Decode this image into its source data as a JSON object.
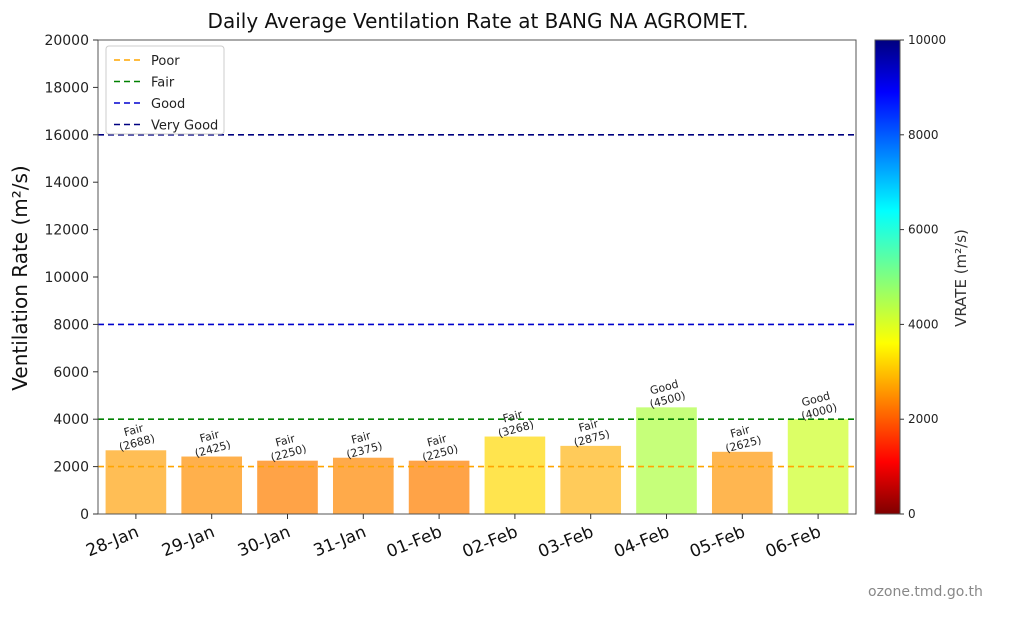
{
  "chart_data": {
    "type": "bar",
    "title": "Daily Average Ventilation Rate at BANG NA AGROMET.",
    "ylabel": "Ventilation Rate (m²/s)",
    "xlabel": "",
    "ylim": [
      0,
      20000
    ],
    "yticks": [
      0,
      2000,
      4000,
      6000,
      8000,
      10000,
      12000,
      14000,
      16000,
      18000,
      20000
    ],
    "grid": false,
    "legend_position": "top-left",
    "categories": [
      "28-Jan",
      "29-Jan",
      "30-Jan",
      "31-Jan",
      "01-Feb",
      "02-Feb",
      "03-Feb",
      "04-Feb",
      "05-Feb",
      "06-Feb"
    ],
    "values": [
      2688,
      2425,
      2250,
      2375,
      2250,
      3268,
      2875,
      4500,
      2625,
      4000
    ],
    "bar_labels": [
      "Fair",
      "Fair",
      "Fair",
      "Fair",
      "Fair",
      "Fair",
      "Fair",
      "Good",
      "Fair",
      "Good"
    ],
    "bar_value_labels": [
      "(2688)",
      "(2425)",
      "(2250)",
      "(2375)",
      "(2250)",
      "(3268)",
      "(2875)",
      "(4500)",
      "(2625)",
      "(4000)"
    ],
    "bar_colors": [
      "#ffbe55",
      "#ffb04c",
      "#ffa347",
      "#ffaa4a",
      "#ffa347",
      "#ffe44e",
      "#ffcb5a",
      "#c6ff7a",
      "#ffb650",
      "#dcff66"
    ],
    "thresholds": [
      {
        "name": "Poor",
        "value": 2000,
        "color": "#ffa500"
      },
      {
        "name": "Fair",
        "value": 4000,
        "color": "#008000"
      },
      {
        "name": "Good",
        "value": 8000,
        "color": "#0000cd"
      },
      {
        "name": "Very Good",
        "value": 16000,
        "color": "#000080"
      }
    ],
    "colorbar": {
      "label": "VRATE (m²/s)",
      "range": [
        0,
        10000
      ],
      "ticks": [
        0,
        2000,
        4000,
        6000,
        8000,
        10000
      ],
      "colormap": "jet"
    }
  },
  "footer": {
    "credit": "ozone.tmd.go.th"
  }
}
